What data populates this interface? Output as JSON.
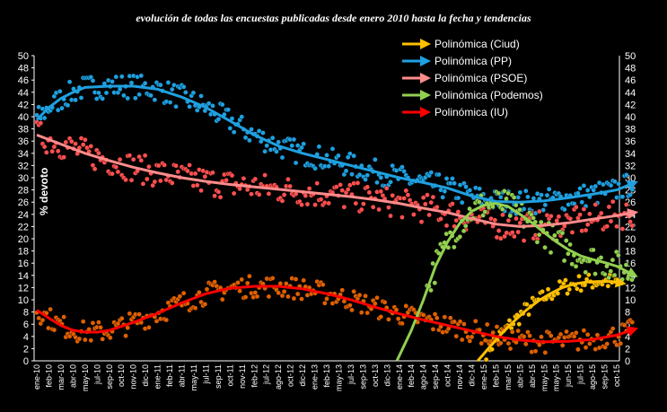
{
  "chart_data": {
    "type": "scatter",
    "title": "evolución de todas las encuestas publicadas  desde enero 2010 hasta la fecha y tendencias",
    "ylabel": "% devoto",
    "ylim": [
      0,
      50
    ],
    "yticks": [
      0,
      2,
      4,
      6,
      8,
      10,
      12,
      14,
      16,
      18,
      20,
      22,
      24,
      26,
      28,
      30,
      32,
      34,
      36,
      38,
      40,
      42,
      44,
      46,
      48,
      50
    ],
    "x_labels": [
      "ene-10",
      "feb-10",
      "mar-10",
      "abr-10",
      "may-10",
      "jul-10",
      "sep-10",
      "oct-10",
      "nov-10",
      "dic-10",
      "ene-11",
      "feb-11",
      "abr-11",
      "may-11",
      "jul-11",
      "sep-11",
      "oct-11",
      "nov-11",
      "feb-12",
      "jul-12",
      "ago-12",
      "oct-12",
      "dic-12",
      "ene-13",
      "feb-13",
      "may-13",
      "jul-13",
      "sep-13",
      "oct-13",
      "dic-13",
      "ene-14",
      "feb-14",
      "ago-14",
      "sep-14",
      "oct-14",
      "nov-14",
      "dic-14",
      "ene-15",
      "feb-15",
      "mar-15",
      "abr-15",
      "abr-15",
      "may-15",
      "may-15",
      "jun-15",
      "jul-15",
      "ago-15",
      "sep-15",
      "oct-15"
    ],
    "legend_position": "top-right",
    "series": [
      {
        "name": "Polinómica  (Ciud)",
        "color": "#FFC000",
        "trend": [
          [
            36.5,
            0
          ],
          [
            37.5,
            2.3
          ],
          [
            38.5,
            4.5
          ],
          [
            39.5,
            6.5
          ],
          [
            40.5,
            8.3
          ],
          [
            41.5,
            9.8
          ],
          [
            42.5,
            11
          ],
          [
            43.5,
            12
          ],
          [
            44.5,
            12.6
          ],
          [
            45.5,
            12.9
          ],
          [
            46.5,
            13
          ],
          [
            47.5,
            13
          ],
          [
            48.5,
            12.7
          ]
        ]
      },
      {
        "name": "Polinómica  (PP)",
        "color": "#1FA0E0",
        "trend": [
          [
            0,
            39.5
          ],
          [
            1,
            41.5
          ],
          [
            2,
            43
          ],
          [
            3,
            44
          ],
          [
            4,
            44.8
          ],
          [
            6,
            45
          ],
          [
            8,
            45
          ],
          [
            10,
            44.5
          ],
          [
            12,
            43.2
          ],
          [
            14,
            41.5
          ],
          [
            16,
            39.3
          ],
          [
            18,
            37
          ],
          [
            20,
            35.2
          ],
          [
            22,
            34
          ],
          [
            24,
            33
          ],
          [
            26,
            32
          ],
          [
            28,
            31
          ],
          [
            30,
            30
          ],
          [
            32,
            29.2
          ],
          [
            34,
            28.3
          ],
          [
            36,
            27
          ],
          [
            38,
            26.1
          ],
          [
            40,
            26
          ],
          [
            42,
            26.2
          ],
          [
            44,
            26.7
          ],
          [
            46,
            27.3
          ],
          [
            48,
            28
          ],
          [
            49.5,
            29.2
          ]
        ]
      },
      {
        "name": "Polinómica  (PSOE)",
        "color": "#FF8C8C",
        "trend": [
          [
            0,
            37
          ],
          [
            2,
            35.5
          ],
          [
            4,
            34
          ],
          [
            6,
            32.8
          ],
          [
            8,
            31.7
          ],
          [
            10,
            30.8
          ],
          [
            12,
            30
          ],
          [
            14,
            29.4
          ],
          [
            16,
            28.9
          ],
          [
            18,
            28.5
          ],
          [
            20,
            28.1
          ],
          [
            22,
            27.7
          ],
          [
            24,
            27.3
          ],
          [
            26,
            26.9
          ],
          [
            28,
            26.4
          ],
          [
            30,
            25.8
          ],
          [
            32,
            25
          ],
          [
            34,
            24.3
          ],
          [
            36,
            23.3
          ],
          [
            38,
            22.4
          ],
          [
            40,
            22
          ],
          [
            42,
            22.2
          ],
          [
            44,
            22.6
          ],
          [
            46,
            23.2
          ],
          [
            48,
            23.8
          ],
          [
            49.5,
            24.3
          ]
        ]
      },
      {
        "name": "Polinómica  (Podemos)",
        "color": "#92D050",
        "trend": [
          [
            29.8,
            0
          ],
          [
            31,
            5
          ],
          [
            32,
            10
          ],
          [
            33,
            15.5
          ],
          [
            34,
            19.5
          ],
          [
            35,
            22.5
          ],
          [
            36,
            24.5
          ],
          [
            37,
            25.5
          ],
          [
            38,
            25.8
          ],
          [
            39,
            25.3
          ],
          [
            40,
            24
          ],
          [
            41,
            22.6
          ],
          [
            42,
            21
          ],
          [
            43,
            19.5
          ],
          [
            44,
            18.2
          ],
          [
            45,
            17.2
          ],
          [
            46,
            16.6
          ],
          [
            47,
            16.1
          ],
          [
            48,
            15.5
          ],
          [
            49.5,
            14
          ]
        ]
      },
      {
        "name": "Polinómica  (IU)",
        "color": "#FF0000",
        "trend": [
          [
            0,
            8.3
          ],
          [
            1,
            7
          ],
          [
            2,
            5.8
          ],
          [
            3,
            5
          ],
          [
            4,
            4.7
          ],
          [
            5,
            4.7
          ],
          [
            6,
            5
          ],
          [
            8,
            6.3
          ],
          [
            10,
            7.8
          ],
          [
            12,
            9.5
          ],
          [
            14,
            11
          ],
          [
            16,
            11.9
          ],
          [
            18,
            12.2
          ],
          [
            20,
            12.2
          ],
          [
            22,
            11.8
          ],
          [
            24,
            11
          ],
          [
            26,
            10
          ],
          [
            28,
            8.8
          ],
          [
            30,
            7.7
          ],
          [
            32,
            6.7
          ],
          [
            34,
            5.8
          ],
          [
            36,
            4.9
          ],
          [
            38,
            4
          ],
          [
            40,
            3.4
          ],
          [
            42,
            3.1
          ],
          [
            44,
            3.2
          ],
          [
            46,
            3.5
          ],
          [
            48,
            4.2
          ],
          [
            49.5,
            5.2
          ]
        ]
      }
    ]
  }
}
